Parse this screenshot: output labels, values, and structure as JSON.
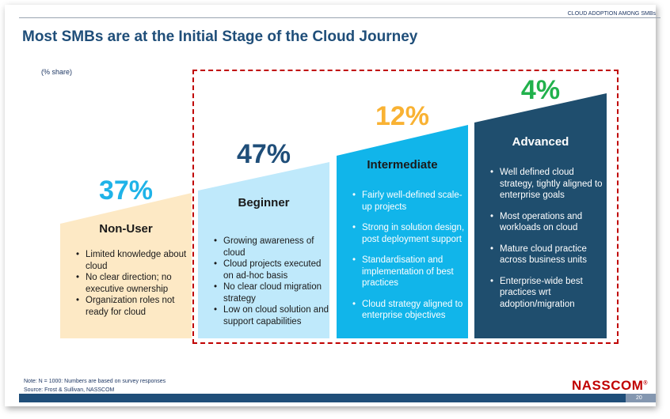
{
  "header": {
    "tag": "CLOUD ADOPTION AMONG SMBs",
    "title": "Most SMBs are at the Initial Stage of the Cloud Journey",
    "unit": "(% share)"
  },
  "chart_data": {
    "type": "bar",
    "categories": [
      "Non-User",
      "Beginner",
      "Intermediate",
      "Advanced"
    ],
    "values": [
      37,
      47,
      12,
      4
    ],
    "value_labels": [
      "37%",
      "47%",
      "12%",
      "4%"
    ],
    "ylabel": "(% share)"
  },
  "stages": [
    {
      "name": "Non-User",
      "percent": "37%",
      "fill": "#fde9c5",
      "percent_color": "#1fb3e8",
      "bullets": [
        "Limited knowledge about cloud",
        "No clear direction; no executive ownership",
        "Organization roles not ready for cloud"
      ]
    },
    {
      "name": "Beginner",
      "percent": "47%",
      "fill": "#bfe9fb",
      "percent_color": "#1f4e79",
      "bullets": [
        "Growing awareness of cloud",
        "Cloud projects executed on ad-hoc basis",
        "No clear cloud migration strategy",
        "Low on cloud solution and support capabilities"
      ]
    },
    {
      "name": "Intermediate",
      "percent": "12%",
      "fill": "#11b5ea",
      "percent_color": "#f9b233",
      "bullets": [
        "Fairly well-defined scale-up projects",
        "Strong in solution design, post deployment support",
        "Standardisation and implementation of best practices",
        "Cloud strategy aligned to enterprise objectives"
      ]
    },
    {
      "name": "Advanced",
      "percent": "4%",
      "fill": "#1f4e6e",
      "percent_color": "#21b14c",
      "bullets": [
        "Well defined cloud strategy, tightly aligned to enterprise goals",
        "Most operations and workloads on cloud",
        "Mature cloud practice across business units",
        "Enterprise-wide best practices wrt adoption/migration"
      ]
    }
  ],
  "footer": {
    "note": "Note: N = 1000: Numbers are based on survey responses",
    "source": "Source: Frost & Sullivan, NASSCOM",
    "logo": "NASSCOM",
    "logo_mark": "®",
    "page": "20"
  }
}
